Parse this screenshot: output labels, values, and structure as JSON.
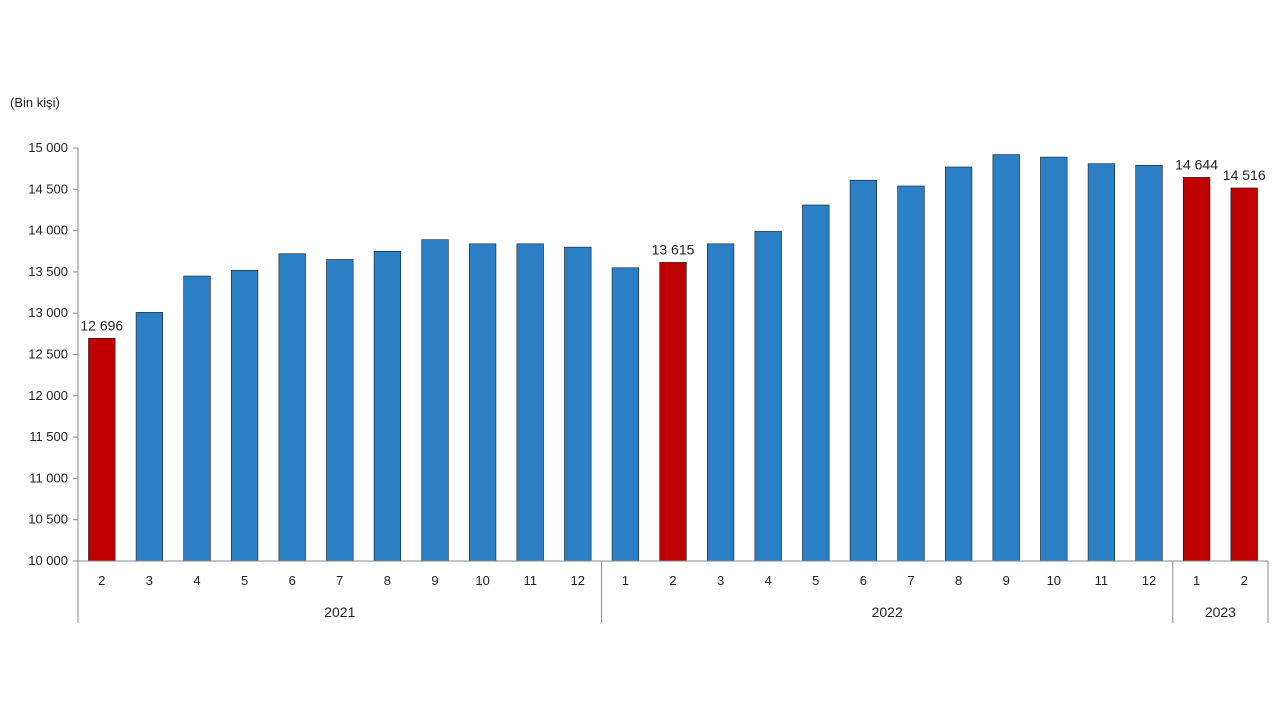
{
  "chart_data": {
    "type": "bar",
    "unit_label": "(Bin kişi)",
    "ylim": [
      10000,
      15000
    ],
    "yticks": [
      10000,
      10500,
      11000,
      11500,
      12000,
      12500,
      13000,
      13500,
      14000,
      14500,
      15000
    ],
    "ytick_labels": [
      "10 000",
      "10 500",
      "11 000",
      "11 500",
      "12 000",
      "12 500",
      "13 000",
      "13 500",
      "14 000",
      "14 500",
      "15 000"
    ],
    "categories": [
      "2",
      "3",
      "4",
      "5",
      "6",
      "7",
      "8",
      "9",
      "10",
      "11",
      "12",
      "1",
      "2",
      "3",
      "4",
      "5",
      "6",
      "7",
      "8",
      "9",
      "10",
      "11",
      "12",
      "1",
      "2"
    ],
    "values": [
      12696,
      13010,
      13450,
      13520,
      13720,
      13650,
      13750,
      13890,
      13840,
      13840,
      13800,
      13550,
      13615,
      13840,
      13990,
      14310,
      14610,
      14540,
      14770,
      14920,
      14890,
      14810,
      14790,
      14644,
      14516
    ],
    "highlighted": [
      0,
      12,
      23,
      24
    ],
    "data_labels": [
      {
        "index": 0,
        "text": "12 696"
      },
      {
        "index": 12,
        "text": "13 615"
      },
      {
        "index": 23,
        "text": "14 644"
      },
      {
        "index": 24,
        "text": "14 516"
      }
    ],
    "year_groups": [
      {
        "label": "2021",
        "start": 0,
        "end": 10
      },
      {
        "label": "2022",
        "start": 11,
        "end": 22
      },
      {
        "label": "2023",
        "start": 23,
        "end": 24
      }
    ],
    "colors": {
      "bar": "#2b7fc5",
      "highlight": "#c00000",
      "axis": "#888888",
      "text": "#222222"
    },
    "grid": false,
    "legend": "none"
  }
}
